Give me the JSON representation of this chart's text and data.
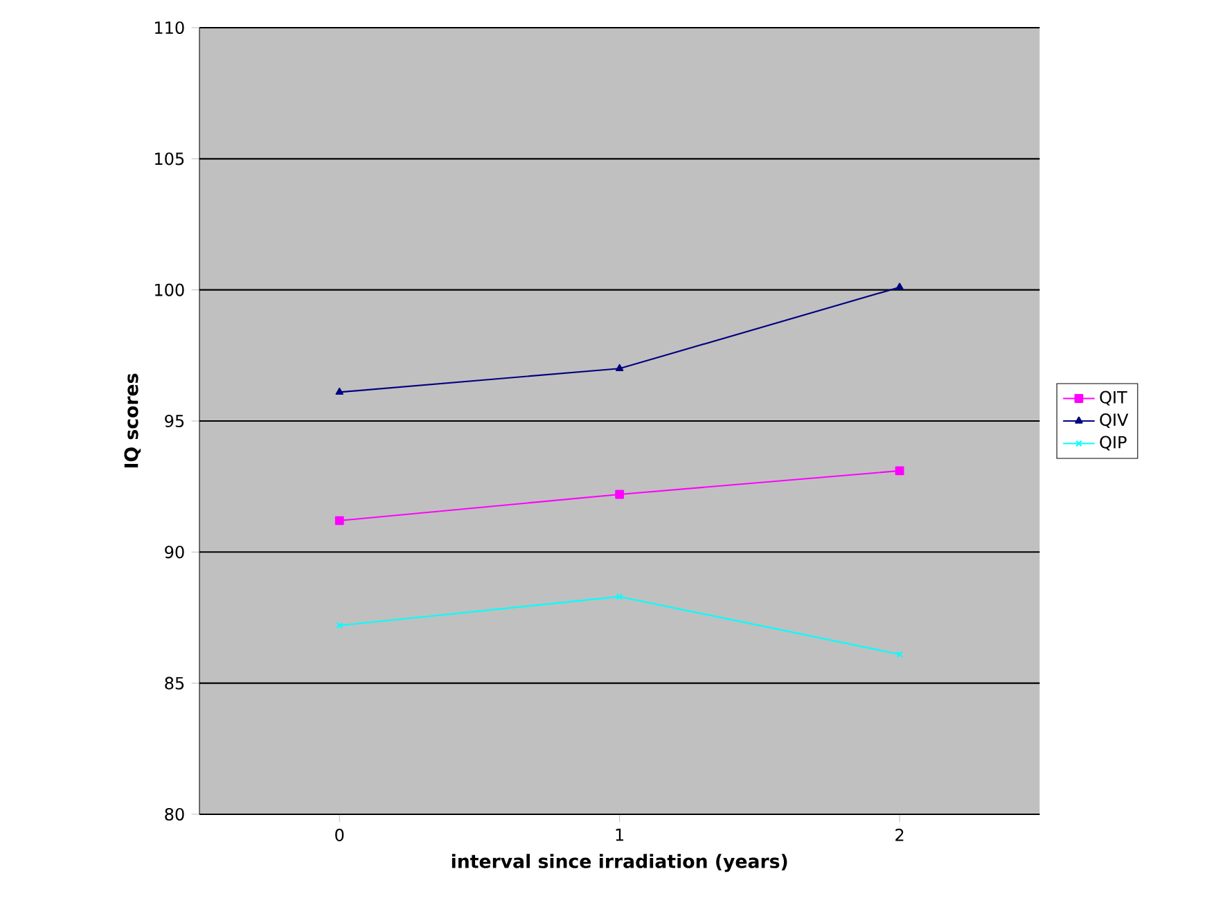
{
  "chart_data": {
    "type": "line",
    "xlabel": "interval since irradiation (years)",
    "ylabel": "IQ scores",
    "categories": [
      "0",
      "1",
      "2"
    ],
    "series": [
      {
        "name": "QIT",
        "color": "#ff00ff",
        "marker": "square",
        "values": [
          91.2,
          92.2,
          93.1
        ]
      },
      {
        "name": "QIV",
        "color": "#000080",
        "marker": "triangle",
        "values": [
          96.1,
          97.0,
          100.1
        ]
      },
      {
        "name": "QIP",
        "color": "#00ffff",
        "marker": "cross",
        "values": [
          87.2,
          88.3,
          86.1
        ]
      }
    ],
    "ylim": [
      80,
      110
    ],
    "yticks": [
      80,
      85,
      90,
      95,
      100,
      105,
      110
    ],
    "grid": "y",
    "legend": "right",
    "line_style": "solid"
  }
}
